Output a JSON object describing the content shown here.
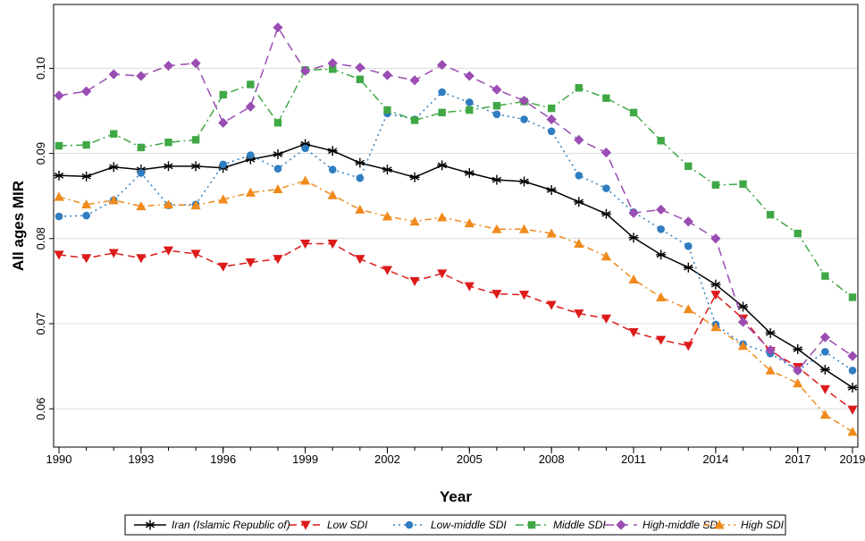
{
  "chart_data": {
    "type": "line",
    "xlabel": "Year",
    "ylabel": "All ages MIR",
    "xlim": [
      1990,
      2019
    ],
    "ylim": [
      0.0555,
      0.1075
    ],
    "x_ticks": [
      1990,
      1993,
      1996,
      1999,
      2002,
      2005,
      2008,
      2011,
      2014,
      2017,
      2019
    ],
    "y_ticks": [
      0.06,
      0.07,
      0.08,
      0.09,
      0.1
    ],
    "y_tick_labels": [
      "0.06",
      "0.07",
      "0.08",
      "0.09",
      "0.10"
    ],
    "grid": "horizontal",
    "legend_position": "bottom",
    "x": [
      1990,
      1991,
      1992,
      1993,
      1994,
      1995,
      1996,
      1997,
      1998,
      1999,
      2000,
      2001,
      2002,
      2003,
      2004,
      2005,
      2006,
      2007,
      2008,
      2009,
      2010,
      2011,
      2012,
      2013,
      2014,
      2015,
      2016,
      2017,
      2018,
      2019
    ],
    "series": [
      {
        "name": "Iran (Islamic Republic of)",
        "color": "#000000",
        "dash": "",
        "marker": "asterisk",
        "values": [
          0.0874,
          0.0873,
          0.0884,
          0.0881,
          0.0885,
          0.0885,
          0.0883,
          0.0893,
          0.0899,
          0.0911,
          0.0903,
          0.0889,
          0.0881,
          0.0872,
          0.0886,
          0.0877,
          0.0869,
          0.0867,
          0.0857,
          0.0843,
          0.0829,
          0.0801,
          0.0781,
          0.0766,
          0.0746,
          0.072,
          0.0689,
          0.067,
          0.0646,
          0.0625
        ]
      },
      {
        "name": "Low SDI",
        "color": "#dd1a1a",
        "dash": "8,5",
        "marker": "triangle-down",
        "values": [
          0.0781,
          0.0777,
          0.0783,
          0.0777,
          0.0786,
          0.0782,
          0.0767,
          0.0772,
          0.0776,
          0.0794,
          0.0794,
          0.0776,
          0.0763,
          0.075,
          0.0759,
          0.0744,
          0.0735,
          0.0734,
          0.0722,
          0.0712,
          0.0706,
          0.069,
          0.0681,
          0.0674,
          0.0734,
          0.0706,
          0.0668,
          0.0649,
          0.0623,
          0.0599
        ]
      },
      {
        "name": "Low-middle SDI",
        "color": "#2f7dc0",
        "dash": "2,4",
        "marker": "circle",
        "values": [
          0.0826,
          0.0827,
          0.0845,
          0.0877,
          0.0839,
          0.084,
          0.0887,
          0.0898,
          0.0882,
          0.0906,
          0.0881,
          0.0871,
          0.0947,
          0.094,
          0.0972,
          0.096,
          0.0946,
          0.094,
          0.0926,
          0.0874,
          0.0859,
          0.0831,
          0.0811,
          0.0791,
          0.0699,
          0.0676,
          0.0665,
          0.0645,
          0.0667,
          0.0645
        ]
      },
      {
        "name": "Middle SDI",
        "color": "#3fa845",
        "dash": "9,4,2,4",
        "marker": "square",
        "values": [
          0.0909,
          0.091,
          0.0923,
          0.0907,
          0.0913,
          0.0916,
          0.0969,
          0.0981,
          0.0936,
          0.0998,
          0.0999,
          0.0987,
          0.0951,
          0.0939,
          0.0948,
          0.0951,
          0.0956,
          0.0961,
          0.0953,
          0.0977,
          0.0965,
          0.0948,
          0.0915,
          0.0885,
          0.0863,
          0.0864,
          0.0828,
          0.0806,
          0.0756,
          0.0731
        ]
      },
      {
        "name": "High-middle SDI",
        "color": "#9a4db3",
        "dash": "10,6",
        "marker": "diamond",
        "values": [
          0.0968,
          0.0973,
          0.0993,
          0.0991,
          0.1003,
          0.1006,
          0.0936,
          0.0955,
          0.1048,
          0.0997,
          0.1006,
          0.1001,
          0.0992,
          0.0986,
          0.1004,
          0.0991,
          0.0975,
          0.0962,
          0.094,
          0.0916,
          0.0901,
          0.083,
          0.0834,
          0.082,
          0.08,
          0.0702,
          0.0669,
          0.0645,
          0.0684,
          0.0662
        ]
      },
      {
        "name": "High SDI",
        "color": "#f08a1c",
        "dash": "7,4,2,4",
        "marker": "triangle-up",
        "values": [
          0.0849,
          0.084,
          0.0845,
          0.0838,
          0.084,
          0.0839,
          0.0846,
          0.0854,
          0.0858,
          0.0868,
          0.0851,
          0.0834,
          0.0826,
          0.082,
          0.0825,
          0.0818,
          0.0811,
          0.0811,
          0.0806,
          0.0794,
          0.0779,
          0.0752,
          0.0731,
          0.0717,
          0.0696,
          0.0674,
          0.0645,
          0.063,
          0.0593,
          0.0573
        ]
      }
    ]
  }
}
